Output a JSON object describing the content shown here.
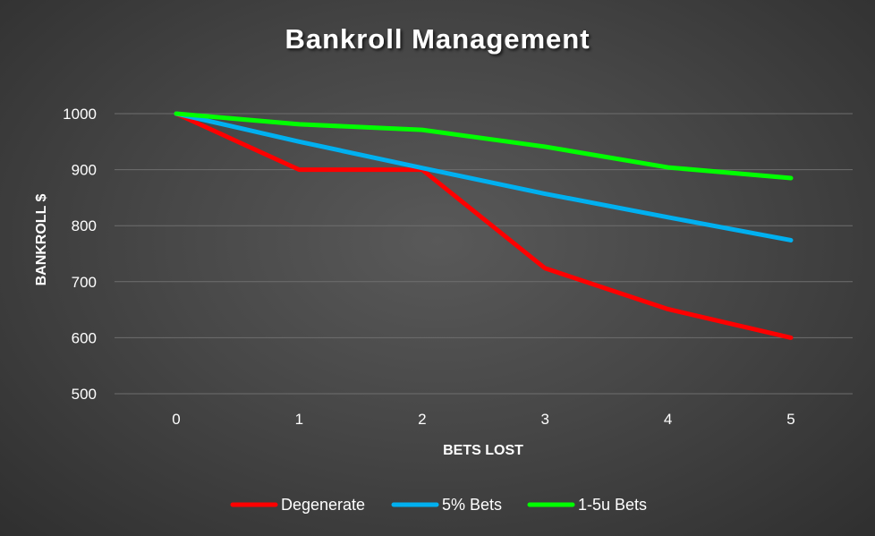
{
  "chart_data": {
    "type": "line",
    "title": "Bankroll Management",
    "xlabel": "BETS LOST",
    "ylabel": "BANKROLL $",
    "x": [
      0,
      1,
      2,
      3,
      4,
      5
    ],
    "x_tick_labels": [
      "0",
      "1",
      "2",
      "3",
      "4",
      "5"
    ],
    "y_ticks": [
      500,
      600,
      700,
      800,
      900,
      1000
    ],
    "y_tick_labels": [
      "500",
      "600",
      "700",
      "800",
      "900",
      "1000"
    ],
    "ylim": [
      500,
      1000
    ],
    "grid": true,
    "legend_position": "bottom",
    "series": [
      {
        "name": "Degenerate",
        "color": "#ff0000",
        "values": [
          1000,
          900,
          900,
          724,
          651,
          600
        ]
      },
      {
        "name": "5% Bets",
        "color": "#00b0f0",
        "values": [
          1000,
          950,
          903,
          857,
          815,
          774
        ]
      },
      {
        "name": "1-5u Bets",
        "color": "#00ff00",
        "values": [
          1000,
          981,
          971,
          941,
          904,
          885
        ]
      }
    ]
  }
}
